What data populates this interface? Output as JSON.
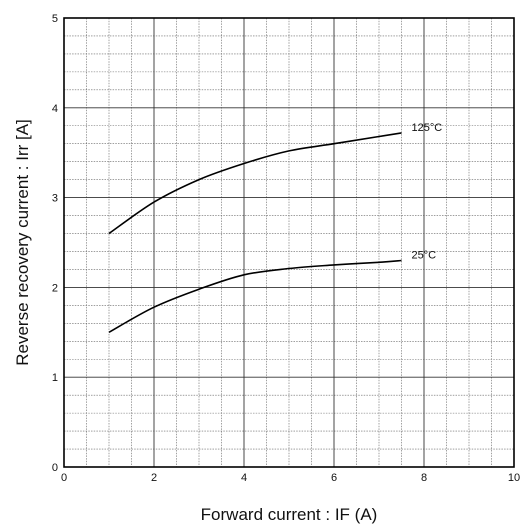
{
  "chart_data": {
    "type": "line",
    "title": "",
    "xlabel": "Forward current : IF (A)",
    "ylabel": "Reverse recovery current : Irr [A]",
    "xlim": [
      0,
      10
    ],
    "ylim": [
      0,
      5
    ],
    "x_major_ticks": [
      "0",
      "2",
      "4",
      "6",
      "8",
      "10"
    ],
    "y_major_ticks": [
      "0",
      "1",
      "2",
      "3",
      "4",
      "5"
    ],
    "x_minor_step": 0.5,
    "y_minor_step": 0.2,
    "grid": true,
    "series": [
      {
        "name": "125°C",
        "x": [
          1.0,
          2.0,
          3.0,
          4.0,
          5.0,
          6.0,
          7.0,
          7.5
        ],
        "y": [
          2.6,
          2.95,
          3.2,
          3.38,
          3.52,
          3.6,
          3.68,
          3.72
        ]
      },
      {
        "name": "25°C",
        "x": [
          1.0,
          2.0,
          3.0,
          4.0,
          5.0,
          6.0,
          7.0,
          7.5
        ],
        "y": [
          1.5,
          1.78,
          1.98,
          2.14,
          2.21,
          2.25,
          2.28,
          2.3
        ]
      }
    ]
  }
}
